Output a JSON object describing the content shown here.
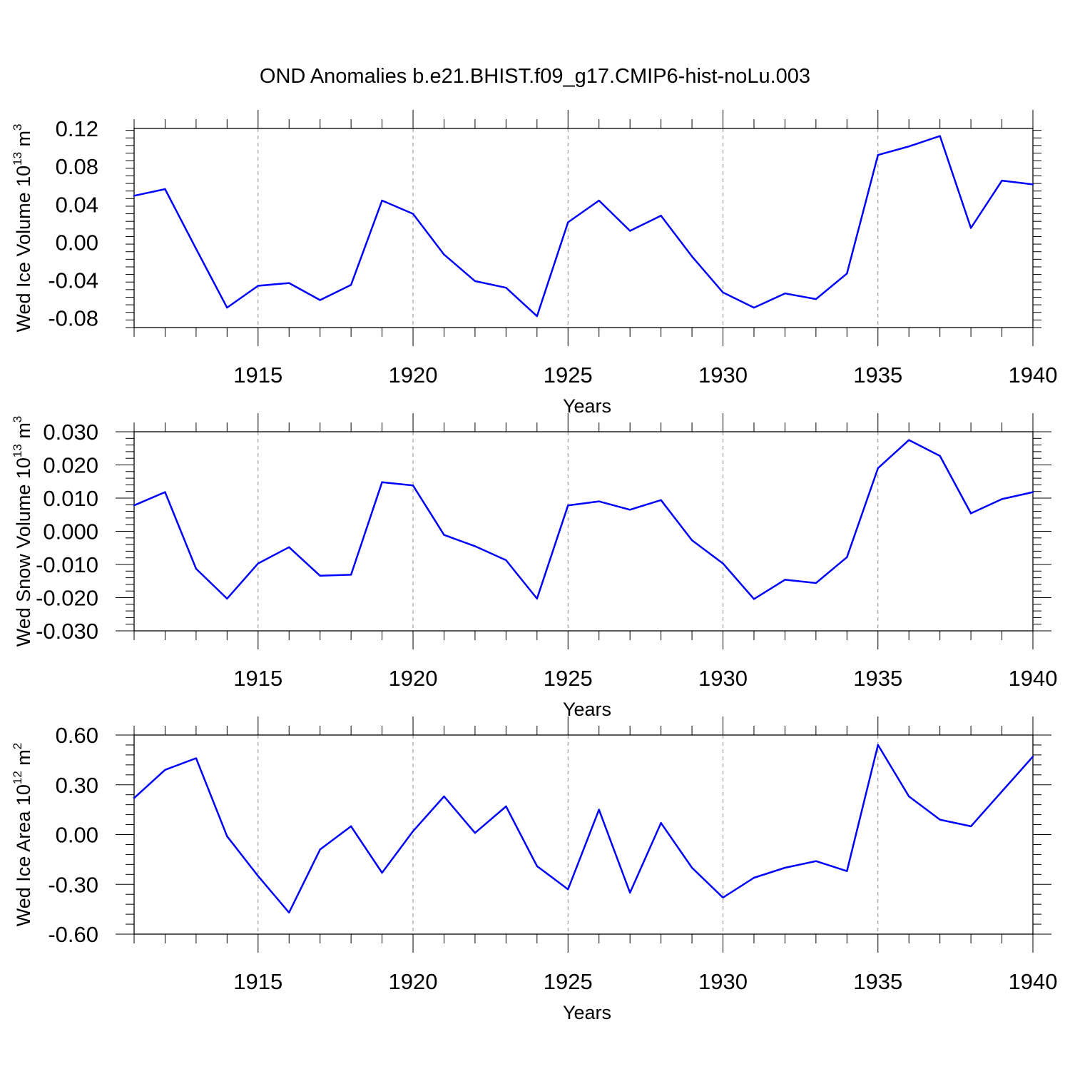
{
  "title": "OND Anomalies b.e21.BHIST.f09_g17.CMIP6-hist-noLu.003",
  "colors": {
    "line": "#0000ff",
    "axis": "#000000",
    "grid": "#8c8c8c"
  },
  "chart_data": [
    {
      "type": "line",
      "ylabel": "Wed Ice Volume 10",
      "ylabel_exp": "13",
      "ylabel_unit": " m",
      "ylabel_unit_exp": "3",
      "xlabel": "Years",
      "xlim": [
        1911,
        1940
      ],
      "ylim": [
        -0.09,
        0.12
      ],
      "yticks": [
        0.12,
        0.08,
        0.04,
        0.0,
        -0.04,
        -0.08
      ],
      "ytick_labels": [
        "0.12",
        "0.08",
        "0.04",
        "0.00",
        "-0.04",
        "-0.08"
      ],
      "xticks": [
        1915,
        1920,
        1925,
        1930,
        1935,
        1940
      ],
      "xtick_labels": [
        "1915",
        "1920",
        "1925",
        "1930",
        "1935",
        "1940"
      ],
      "grid": "vertical dashed at major x ticks",
      "x": [
        1911,
        1912,
        1913,
        1914,
        1915,
        1916,
        1917,
        1918,
        1919,
        1920,
        1921,
        1922,
        1923,
        1924,
        1925,
        1926,
        1927,
        1928,
        1929,
        1930,
        1931,
        1932,
        1933,
        1934,
        1935,
        1936,
        1937,
        1938,
        1939,
        1940
      ],
      "values": [
        0.049,
        0.056,
        -0.007,
        -0.069,
        -0.046,
        -0.043,
        -0.061,
        -0.045,
        0.044,
        0.03,
        -0.013,
        -0.041,
        -0.048,
        -0.078,
        0.021,
        0.044,
        0.012,
        0.028,
        -0.015,
        -0.053,
        -0.069,
        -0.054,
        -0.06,
        -0.033,
        0.092,
        0.101,
        0.112,
        0.015,
        0.065,
        0.061
      ]
    },
    {
      "type": "line",
      "ylabel": "Wed Snow Volume 10",
      "ylabel_exp": "13",
      "ylabel_unit": " m",
      "ylabel_unit_exp": "3",
      "xlabel": "Years",
      "xlim": [
        1911,
        1940
      ],
      "ylim": [
        -0.03,
        0.03
      ],
      "yticks": [
        0.03,
        0.02,
        0.01,
        0.0,
        -0.01,
        -0.02,
        -0.03
      ],
      "ytick_labels": [
        "0.030",
        "0.020",
        "0.010",
        "0.000",
        "-0.010",
        "-0.020",
        "-0.030"
      ],
      "xticks": [
        1915,
        1920,
        1925,
        1930,
        1935,
        1940
      ],
      "xtick_labels": [
        "1915",
        "1920",
        "1925",
        "1930",
        "1935",
        "1940"
      ],
      "grid": "vertical dashed at major x ticks",
      "x": [
        1911,
        1912,
        1913,
        1914,
        1915,
        1916,
        1917,
        1918,
        1919,
        1920,
        1921,
        1922,
        1923,
        1924,
        1925,
        1926,
        1927,
        1928,
        1929,
        1930,
        1931,
        1932,
        1933,
        1934,
        1935,
        1936,
        1937,
        1938,
        1939,
        1940
      ],
      "values": [
        0.0078,
        0.0118,
        -0.0113,
        -0.0203,
        -0.0097,
        -0.0048,
        -0.0134,
        -0.0131,
        0.0148,
        0.0138,
        -0.0011,
        -0.0045,
        -0.0087,
        -0.0203,
        0.0078,
        0.009,
        0.0065,
        0.0094,
        -0.0027,
        -0.0097,
        -0.0204,
        -0.0146,
        -0.0156,
        -0.0078,
        0.019,
        0.0275,
        0.0227,
        0.0054,
        0.0097,
        0.0118
      ]
    },
    {
      "type": "line",
      "ylabel": "Wed Ice Area 10",
      "ylabel_exp": "12",
      "ylabel_unit": " m",
      "ylabel_unit_exp": "2",
      "xlabel": "Years",
      "xlim": [
        1911,
        1940
      ],
      "ylim": [
        -0.6,
        0.6
      ],
      "yticks": [
        0.6,
        0.3,
        0.0,
        -0.3,
        -0.6
      ],
      "ytick_labels": [
        "0.60",
        "0.30",
        "0.00",
        "-0.30",
        "-0.60"
      ],
      "xticks": [
        1915,
        1920,
        1925,
        1930,
        1935,
        1940
      ],
      "xtick_labels": [
        "1915",
        "1920",
        "1925",
        "1930",
        "1935",
        "1940"
      ],
      "grid": "vertical dashed at major x ticks",
      "x": [
        1911,
        1912,
        1913,
        1914,
        1915,
        1916,
        1917,
        1918,
        1919,
        1920,
        1921,
        1922,
        1923,
        1924,
        1925,
        1926,
        1927,
        1928,
        1929,
        1930,
        1931,
        1932,
        1933,
        1934,
        1935,
        1936,
        1937,
        1938,
        1939,
        1940
      ],
      "values": [
        0.22,
        0.39,
        0.46,
        -0.01,
        -0.25,
        -0.47,
        -0.09,
        0.05,
        -0.23,
        0.02,
        0.23,
        0.01,
        0.17,
        -0.19,
        -0.33,
        0.15,
        -0.35,
        0.07,
        -0.2,
        -0.38,
        -0.26,
        -0.2,
        -0.16,
        -0.22,
        0.54,
        0.23,
        0.09,
        0.05,
        0.26,
        0.47
      ]
    }
  ]
}
